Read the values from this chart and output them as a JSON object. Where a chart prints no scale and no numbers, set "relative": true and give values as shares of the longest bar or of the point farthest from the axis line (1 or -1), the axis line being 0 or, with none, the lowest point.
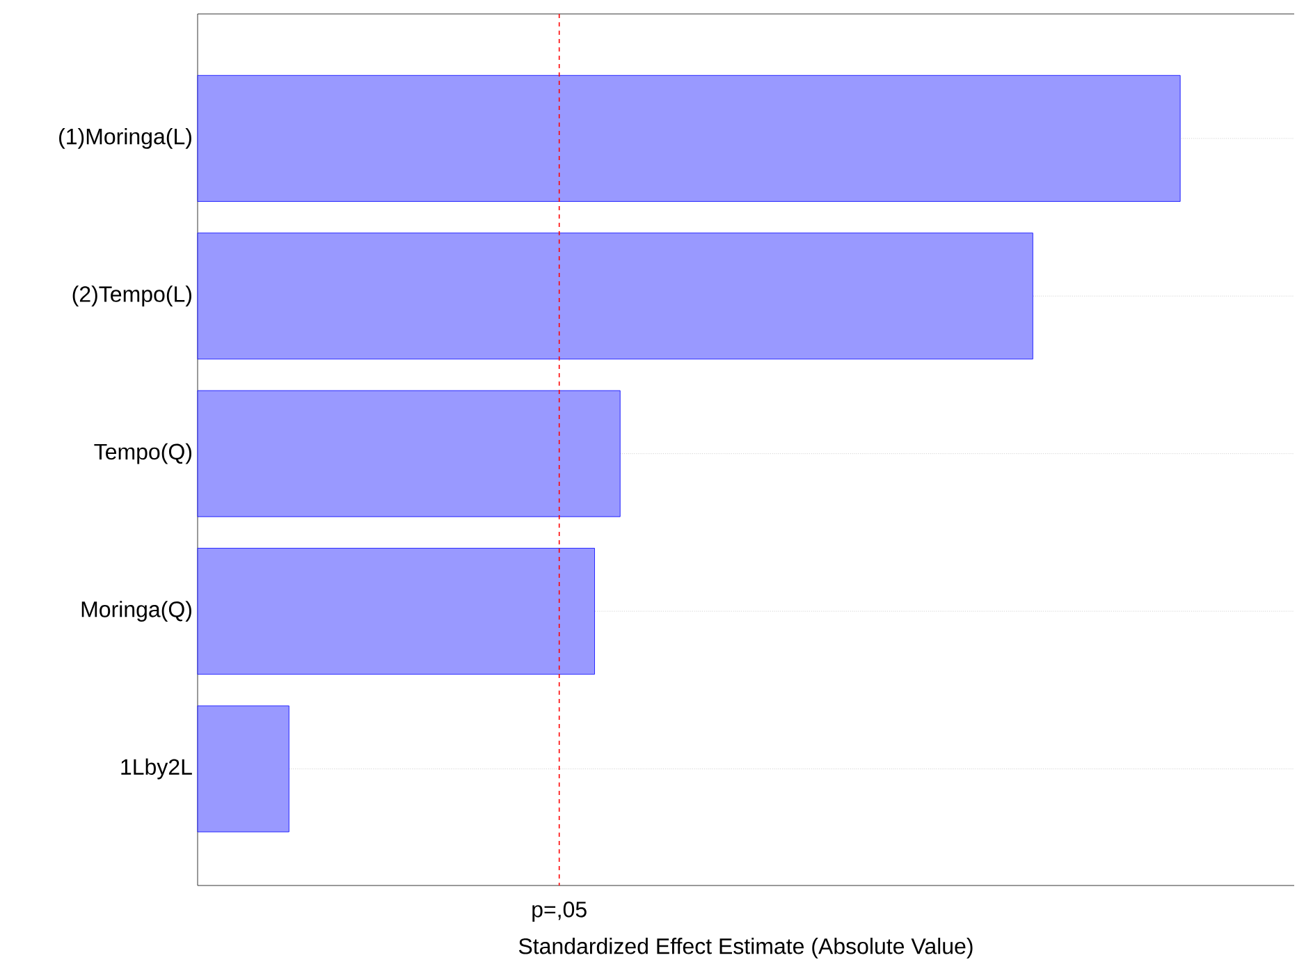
{
  "chart_data": {
    "type": "bar",
    "orientation": "horizontal",
    "relative": true,
    "xlabel": "Standardized Effect Estimate (Absolute Value)",
    "categories": [
      "(1)Moringa(L)",
      "(2)Tempo(L)",
      "Tempo(Q)",
      "Moringa(Q)",
      "1Lby2L"
    ],
    "values": [
      1,
      0.85,
      0.43,
      0.404,
      0.093
    ],
    "color": "#0000ff",
    "grid": "y",
    "ref_lines": [
      {
        "axis": "x",
        "value": 0.368,
        "label": "p=,05",
        "color": "#ff0000",
        "line_style": "dashed"
      }
    ]
  }
}
